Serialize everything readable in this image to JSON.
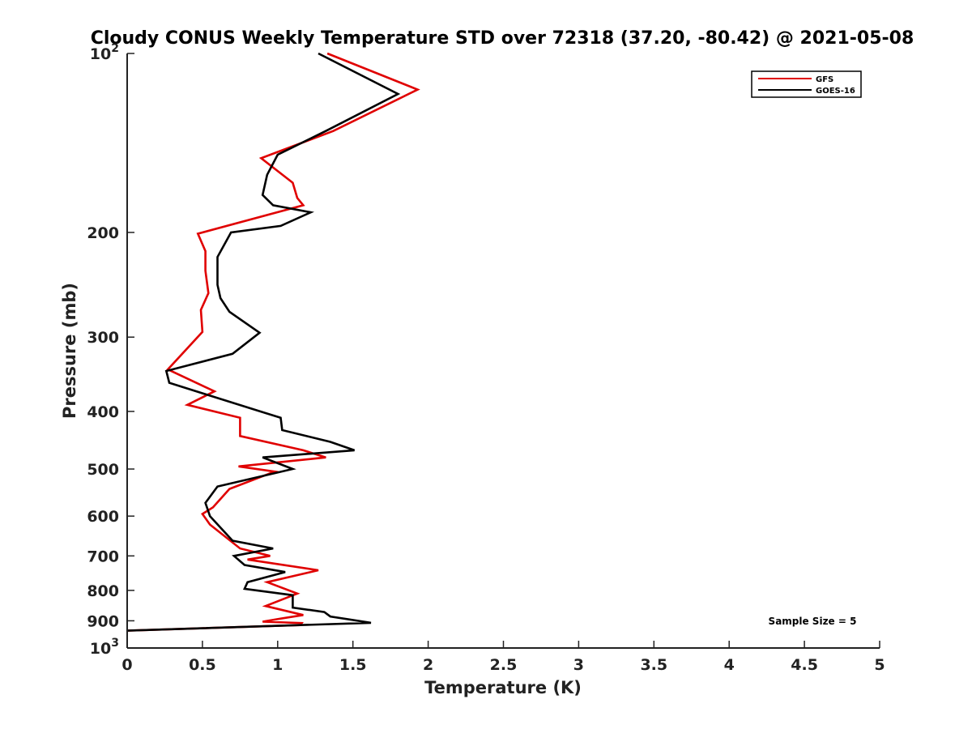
{
  "chart_data": {
    "type": "line",
    "title": "Cloudy CONUS Weekly Temperature STD over 72318 (37.20, -80.42) @ 2021-05-08",
    "xlabel": "Temperature (K)",
    "ylabel": "Pressure (mb)",
    "xlim": [
      0,
      5
    ],
    "ylim": [
      100,
      1000
    ],
    "yscale": "log",
    "yreversed": true,
    "grid": false,
    "legend_position": "top-right",
    "xticks": [
      0,
      0.5,
      1,
      1.5,
      2,
      2.5,
      3,
      3.5,
      4,
      4.5,
      5
    ],
    "xtick_labels": [
      "0",
      "0.5",
      "1",
      "1.5",
      "2",
      "2.5",
      "3",
      "3.5",
      "4",
      "4.5",
      "5"
    ],
    "yticks": [
      {
        "value": 100,
        "base": "10",
        "exp": "2"
      },
      {
        "value": 200,
        "label": "200"
      },
      {
        "value": 300,
        "label": "300"
      },
      {
        "value": 400,
        "label": "400"
      },
      {
        "value": 500,
        "label": "500"
      },
      {
        "value": 600,
        "label": "600"
      },
      {
        "value": 700,
        "label": "700"
      },
      {
        "value": 800,
        "label": "800"
      },
      {
        "value": 900,
        "label": "900"
      },
      {
        "value": 1000,
        "base": "10",
        "exp": "3"
      }
    ],
    "series": [
      {
        "name": "GFS",
        "color": "#e00000",
        "x": [
          1.33,
          1.93,
          1.37,
          0.89,
          1.1,
          1.13,
          1.17,
          0.47,
          0.52,
          0.52,
          0.54,
          0.49,
          0.5,
          0.27,
          0.58,
          0.4,
          0.75,
          0.75,
          1.17,
          1.32,
          0.74,
          0.98,
          0.68,
          0.57,
          0.5,
          0.55,
          0.75,
          0.95,
          0.8,
          1.27,
          0.93,
          1.13,
          0.92,
          1.17,
          0.99,
          0.9,
          1.16,
          1.15,
          0
        ],
        "y": [
          100,
          115,
          135,
          150,
          165,
          175,
          180,
          201,
          215,
          232,
          253,
          270,
          294,
          340,
          370,
          390,
          410,
          440,
          465,
          478,
          495,
          505,
          540,
          580,
          595,
          620,
          680,
          700,
          710,
          740,
          775,
          810,
          850,
          880,
          895,
          903,
          908,
          915,
          935
        ]
      },
      {
        "name": "GOES-16",
        "color": "#000000",
        "x": [
          1.27,
          1.8,
          1.32,
          1.0,
          0.93,
          0.9,
          0.97,
          1.22,
          1.02,
          0.69,
          0.6,
          0.6,
          0.62,
          0.68,
          0.88,
          0.7,
          0.26,
          0.28,
          0.53,
          1.02,
          1.03,
          1.35,
          1.51,
          0.9,
          1.1,
          0.6,
          0.52,
          0.55,
          0.7,
          0.97,
          0.71,
          0.78,
          1.05,
          0.8,
          0.78,
          1.1,
          1.1,
          1.31,
          1.35,
          1.62,
          0
        ],
        "y": [
          100,
          117,
          135,
          148,
          160,
          173,
          180,
          185,
          195,
          200,
          220,
          245,
          258,
          272,
          295,
          320,
          342,
          358,
          375,
          410,
          430,
          450,
          465,
          478,
          500,
          535,
          570,
          600,
          660,
          680,
          700,
          725,
          745,
          775,
          795,
          815,
          855,
          870,
          885,
          907,
          935
        ]
      }
    ],
    "annotations": [
      {
        "text": "Sample Size = 5",
        "position": "bottom-right"
      }
    ]
  }
}
